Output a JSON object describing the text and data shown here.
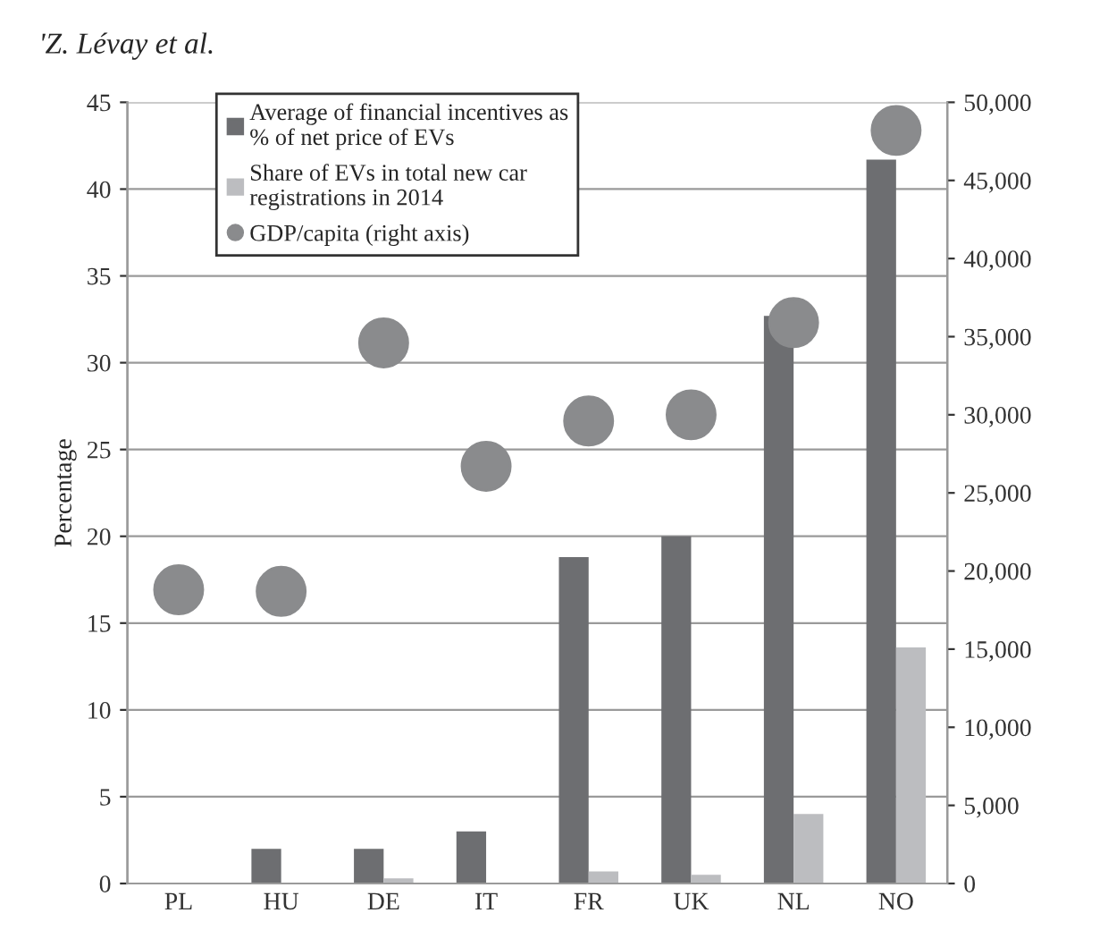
{
  "chart_data": {
    "type": "bar",
    "ylabel": "Percentage",
    "annotations": [
      "'Z. Lévay et al."
    ],
    "categories": [
      "PL",
      "HU",
      "DE",
      "IT",
      "FR",
      "UK",
      "NL",
      "NO"
    ],
    "series": [
      {
        "name": "Average of financial incentives as\n% of net price of EVs",
        "color": "#6d6e71",
        "values": [
          0,
          2,
          2,
          3,
          18.8,
          20,
          32.7,
          41.7
        ]
      },
      {
        "name": "Share of EVs in total new car\nregistrations in 2014",
        "color": "#bcbdc0",
        "values": [
          0,
          0,
          0.3,
          0,
          0.7,
          0.5,
          4.0,
          13.6
        ]
      },
      {
        "name": "GDP/capita (right axis)",
        "type": "scatter",
        "axis": "y2",
        "color": "#8a8b8d",
        "values": [
          18800,
          18700,
          34600,
          26700,
          29600,
          30000,
          35900,
          48200
        ]
      }
    ],
    "ylim": [
      0,
      45
    ],
    "yticks": [
      0,
      5,
      10,
      15,
      20,
      25,
      30,
      35,
      40,
      45
    ],
    "y2lim": [
      0,
      50000
    ],
    "y2ticks": [
      {
        "value": 0,
        "label": "0"
      },
      {
        "value": 5000,
        "label": "5,000"
      },
      {
        "value": 10000,
        "label": "10,000"
      },
      {
        "value": 15000,
        "label": "15,000"
      },
      {
        "value": 20000,
        "label": "20,000"
      },
      {
        "value": 25000,
        "label": "25,000"
      },
      {
        "value": 30000,
        "label": "30,000"
      },
      {
        "value": 35000,
        "label": "35,000"
      },
      {
        "value": 40000,
        "label": "40,000"
      },
      {
        "value": 45000,
        "label": "45,000"
      },
      {
        "value": 50000,
        "label": "50,000"
      }
    ],
    "grid": "y",
    "legend": "top left",
    "marker": "circle"
  }
}
